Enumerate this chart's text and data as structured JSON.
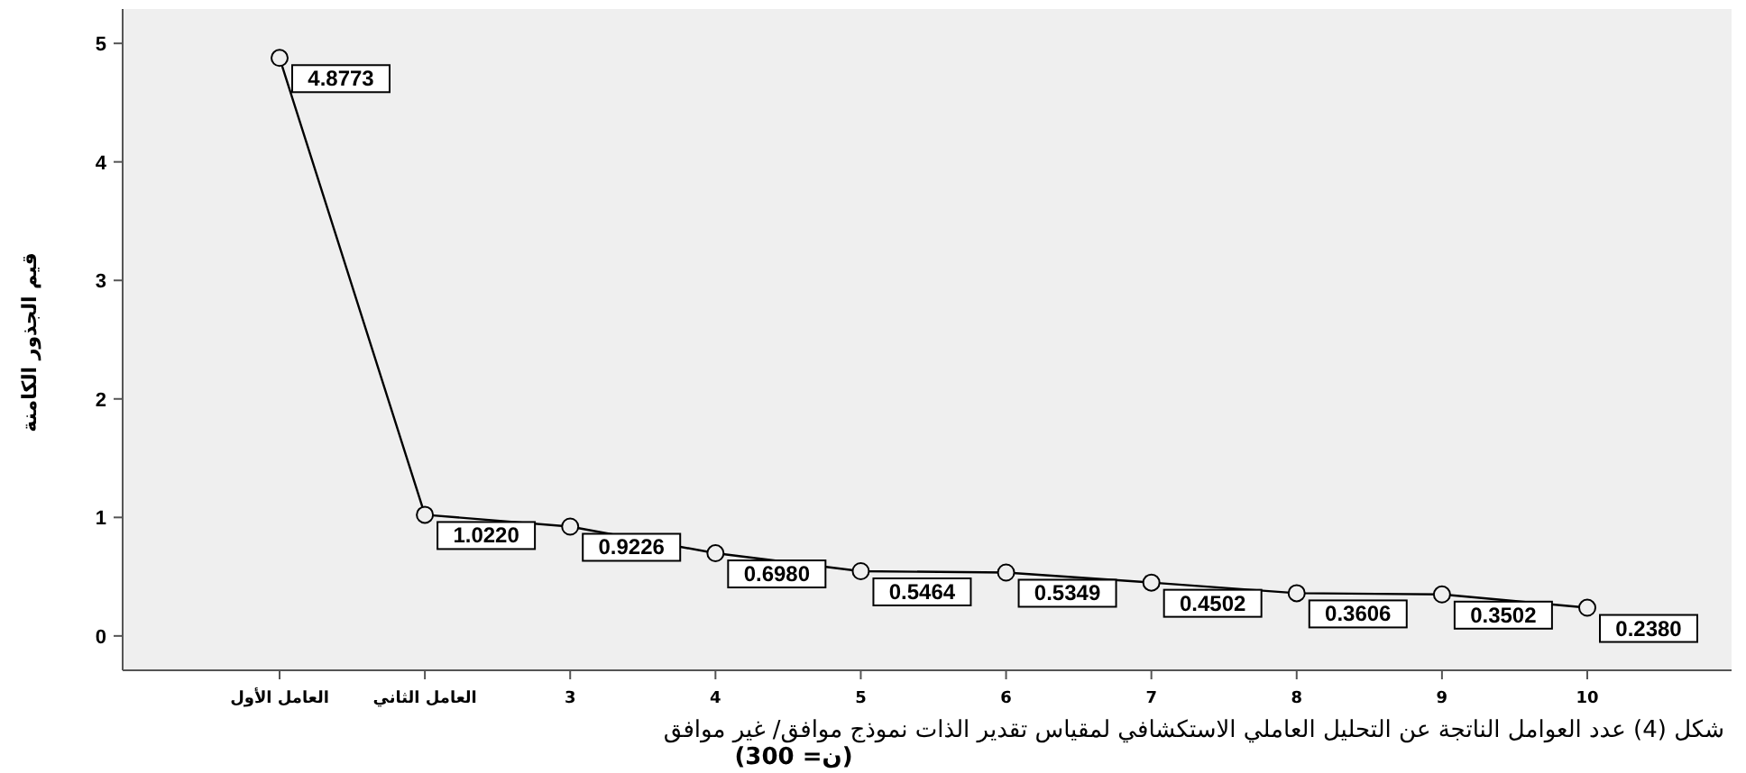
{
  "chart_data": {
    "type": "line",
    "categories": [
      "العامل الأول",
      "العامل الثاني",
      "3",
      "4",
      "5",
      "6",
      "7",
      "8",
      "9",
      "10"
    ],
    "values": [
      4.8773,
      1.022,
      0.9226,
      0.698,
      0.5464,
      0.5349,
      0.4502,
      0.3606,
      0.3502,
      0.238
    ],
    "value_labels": [
      "4.8773",
      "1.0220",
      "0.9226",
      "0.6980",
      "0.5464",
      "0.5349",
      "0.4502",
      "0.3606",
      "0.3502",
      "0.2380"
    ],
    "color": "#000000",
    "marker": "circle",
    "grid": false,
    "ylim": [
      -0.29,
      5.29
    ],
    "yticks": [
      0,
      1,
      2,
      3,
      4,
      5
    ],
    "ylabel": "قيم الجذور الكامنة",
    "xlabel": "شكل (4) عدد العوامل الناتجة عن التحليل العاملي الاستكشافي لمقياس تقدير الذات نموذج موافق/ غير موافق",
    "annotations": [
      "(ن= 300)"
    ]
  }
}
